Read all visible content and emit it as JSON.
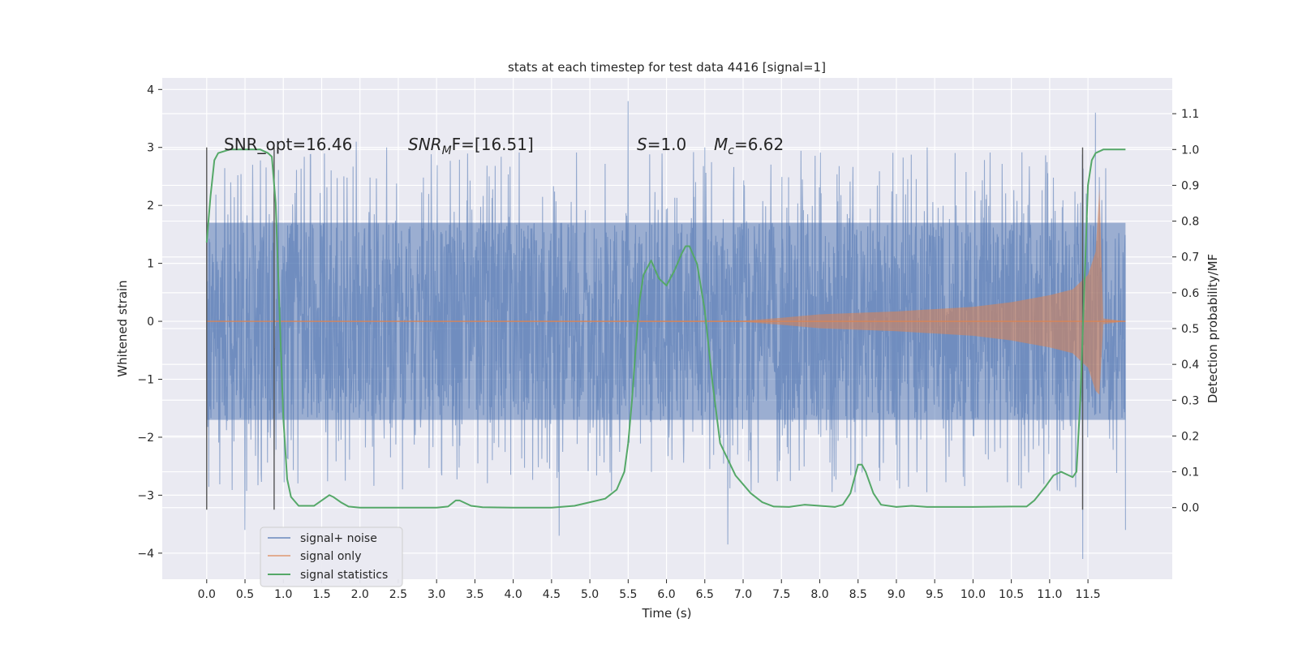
{
  "chart_data": {
    "type": "line",
    "title": "stats at each timestep for test data 4416 [signal=1]",
    "xlabel": "Time (s)",
    "ylabel": "Whitened strain",
    "y2label": "Detection probability/MF",
    "xlim": [
      -0.58,
      12.6
    ],
    "ylim": [
      -4.45,
      4.2
    ],
    "y2lim": [
      -0.2,
      1.2
    ],
    "x_ticks": [
      0.0,
      0.5,
      1.0,
      1.5,
      2.0,
      2.5,
      3.0,
      3.5,
      4.0,
      4.5,
      5.0,
      5.5,
      6.0,
      6.5,
      7.0,
      7.5,
      8.0,
      8.5,
      9.0,
      9.5,
      10.0,
      10.5,
      11.0,
      11.5
    ],
    "x_tick_labels": [
      "0.0",
      "0.5",
      "1.0",
      "1.5",
      "2.0",
      "2.5",
      "3.0",
      "3.5",
      "4.0",
      "4.5",
      "5.0",
      "5.5",
      "6.0",
      "6.5",
      "7.0",
      "7.5",
      "8.0",
      "8.5",
      "9.0",
      "9.5",
      "10.0",
      "10.5",
      "11.0",
      "11.5"
    ],
    "y_ticks": [
      -4,
      -3,
      -2,
      -1,
      0,
      1,
      2,
      3,
      4
    ],
    "y_tick_labels": [
      "−4",
      "−3",
      "−2",
      "−1",
      "0",
      "1",
      "2",
      "3",
      "4"
    ],
    "y2_ticks": [
      0.0,
      0.1,
      0.2,
      0.3,
      0.4,
      0.5,
      0.6,
      0.7,
      0.8,
      0.9,
      1.0,
      1.1
    ],
    "y2_tick_labels": [
      "0.0",
      "0.1",
      "0.2",
      "0.3",
      "0.4",
      "0.5",
      "0.6",
      "0.7",
      "0.8",
      "0.9",
      "1.0",
      "1.1"
    ],
    "grid": true,
    "legend_position": "lower-left",
    "annotations": {
      "snr_opt": "SNR_opt=16.46",
      "snr_mf_base": "SNR",
      "snr_mf_sub": "M",
      "snr_mf_rest": "F=[16.51]",
      "s_sym": "S",
      "s_val": "=1.0",
      "mc_base": "M",
      "mc_sub": "c",
      "mc_rest": "=6.62"
    },
    "vlines": [
      0.0,
      0.88,
      11.43
    ],
    "vline_ylim": [
      -3.25,
      3.0
    ],
    "series": [
      {
        "name": "signal+ noise",
        "color": "#4c72b0",
        "axis": "left",
        "x_range": [
          0.0,
          11.99
        ],
        "envelope_abs": 1.7,
        "peak_examples": [
          [
            0.6,
            2.7
          ],
          [
            1.95,
            3.1
          ],
          [
            2.35,
            3.0
          ],
          [
            5.5,
            3.8
          ],
          [
            6.5,
            3.0
          ],
          [
            9.4,
            3.0
          ],
          [
            11.43,
            3.75
          ],
          [
            11.6,
            3.6
          ],
          [
            0.5,
            -3.6
          ],
          [
            4.6,
            -3.7
          ],
          [
            6.8,
            -3.85
          ],
          [
            11.43,
            -4.1
          ],
          [
            11.99,
            -3.6
          ]
        ]
      },
      {
        "name": "signal only",
        "color": "#dd8452",
        "axis": "left",
        "amplitude_envelope": [
          [
            0.0,
            0.0
          ],
          [
            7.0,
            0.01
          ],
          [
            7.5,
            0.06
          ],
          [
            8.0,
            0.12
          ],
          [
            9.0,
            0.17
          ],
          [
            10.0,
            0.25
          ],
          [
            10.5,
            0.33
          ],
          [
            11.0,
            0.45
          ],
          [
            11.3,
            0.55
          ],
          [
            11.5,
            0.8
          ],
          [
            11.6,
            1.2
          ],
          [
            11.65,
            2.3
          ],
          [
            11.7,
            0.05
          ],
          [
            11.99,
            0.0
          ]
        ]
      },
      {
        "name": "signal statistics",
        "color": "#55a868",
        "axis": "right",
        "x": [
          0.0,
          0.05,
          0.1,
          0.15,
          0.3,
          0.5,
          0.7,
          0.8,
          0.85,
          0.9,
          0.95,
          1.0,
          1.05,
          1.1,
          1.2,
          1.4,
          1.5,
          1.6,
          1.65,
          1.75,
          1.85,
          2.0,
          2.5,
          3.0,
          3.15,
          3.25,
          3.3,
          3.45,
          3.6,
          4.0,
          4.5,
          4.8,
          5.0,
          5.2,
          5.35,
          5.45,
          5.5,
          5.55,
          5.6,
          5.65,
          5.7,
          5.8,
          5.9,
          6.0,
          6.1,
          6.2,
          6.25,
          6.3,
          6.4,
          6.5,
          6.6,
          6.7,
          6.9,
          7.1,
          7.25,
          7.4,
          7.6,
          7.8,
          8.0,
          8.2,
          8.3,
          8.4,
          8.5,
          8.55,
          8.6,
          8.7,
          8.8,
          9.0,
          9.2,
          9.4,
          10.0,
          10.5,
          10.7,
          10.8,
          10.95,
          11.05,
          11.15,
          11.25,
          11.3,
          11.35,
          11.4,
          11.45,
          11.5,
          11.55,
          11.6,
          11.7,
          11.8,
          11.99
        ],
        "y": [
          0.74,
          0.87,
          0.97,
          0.99,
          1.0,
          1.0,
          1.0,
          0.99,
          0.98,
          0.85,
          0.55,
          0.25,
          0.08,
          0.03,
          0.005,
          0.005,
          0.02,
          0.035,
          0.03,
          0.015,
          0.003,
          0.0,
          0.0,
          0.0,
          0.003,
          0.02,
          0.02,
          0.005,
          0.001,
          0.0,
          0.0,
          0.005,
          0.015,
          0.025,
          0.05,
          0.1,
          0.18,
          0.3,
          0.45,
          0.58,
          0.65,
          0.69,
          0.64,
          0.62,
          0.66,
          0.71,
          0.73,
          0.73,
          0.68,
          0.55,
          0.35,
          0.18,
          0.09,
          0.04,
          0.015,
          0.003,
          0.002,
          0.008,
          0.005,
          0.002,
          0.008,
          0.04,
          0.12,
          0.12,
          0.1,
          0.04,
          0.008,
          0.002,
          0.005,
          0.002,
          0.002,
          0.003,
          0.003,
          0.02,
          0.06,
          0.09,
          0.1,
          0.09,
          0.085,
          0.1,
          0.3,
          0.6,
          0.9,
          0.97,
          0.99,
          1.0,
          1.0,
          1.0
        ]
      }
    ]
  }
}
